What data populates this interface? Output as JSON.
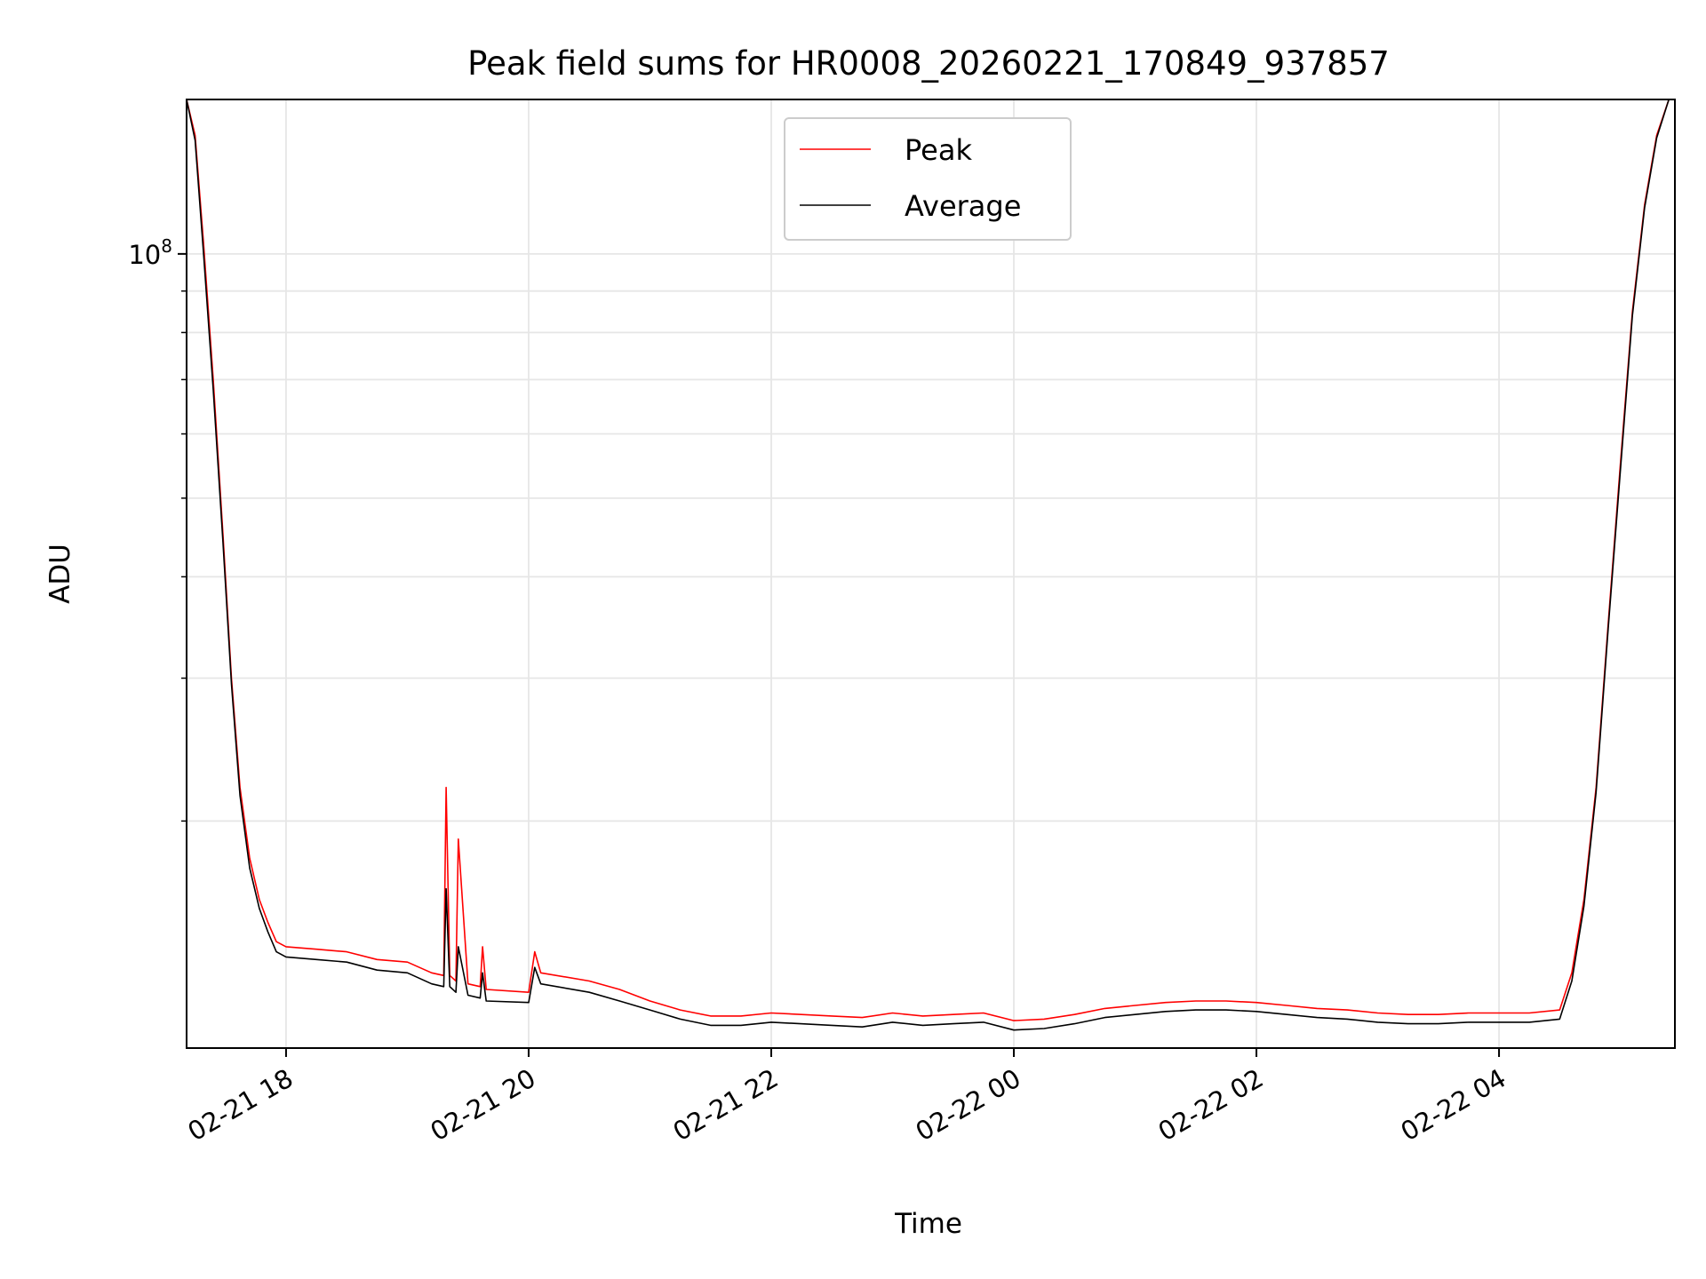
{
  "chart_data": {
    "type": "line",
    "title": "Peak field sums for HR0008_20260221_170849_937857",
    "xlabel": "Time",
    "ylabel": "ADU",
    "yscale": "log",
    "ylim": [
      10500000,
      155000000
    ],
    "xlim_hours": [
      -0.82,
      11.45
    ],
    "grid": true,
    "legend_position": "upper-center",
    "y_major_tick": {
      "value": 100000000,
      "label_base": "10",
      "label_exp": "8"
    },
    "y_minor_ticks": [
      20000000,
      30000000,
      40000000,
      50000000,
      60000000,
      70000000,
      80000000,
      90000000,
      200000000
    ],
    "x_ticks": [
      {
        "hour": 0,
        "label": "02-21 18"
      },
      {
        "hour": 2,
        "label": "02-21 20"
      },
      {
        "hour": 4,
        "label": "02-21 22"
      },
      {
        "hour": 6,
        "label": "02-22 00"
      },
      {
        "hour": 8,
        "label": "02-22 02"
      },
      {
        "hour": 10,
        "label": "02-22 04"
      }
    ],
    "series": [
      {
        "name": "Peak",
        "color": "#ff0000",
        "hours": [
          -0.82,
          -0.75,
          -0.68,
          -0.6,
          -0.52,
          -0.45,
          -0.38,
          -0.3,
          -0.22,
          -0.15,
          -0.08,
          0.0,
          0.25,
          0.5,
          0.75,
          1.0,
          1.2,
          1.3,
          1.32,
          1.35,
          1.4,
          1.42,
          1.5,
          1.6,
          1.62,
          1.65,
          2.0,
          2.05,
          2.1,
          2.5,
          2.75,
          3.0,
          3.25,
          3.5,
          3.75,
          4.0,
          4.5,
          4.75,
          5.0,
          5.25,
          5.5,
          5.75,
          6.0,
          6.25,
          6.5,
          6.75,
          7.0,
          7.25,
          7.5,
          7.75,
          8.0,
          8.25,
          8.5,
          8.75,
          9.0,
          9.25,
          9.5,
          9.75,
          10.0,
          10.25,
          10.5,
          10.6,
          10.7,
          10.8,
          10.9,
          11.0,
          11.1,
          11.2,
          11.3,
          11.4,
          11.45
        ],
        "values": [
          155000000,
          140000000,
          103000000,
          70000000,
          45000000,
          30000000,
          22000000,
          18000000,
          16000000,
          15000000,
          14200000,
          14000000,
          13900000,
          13800000,
          13500000,
          13400000,
          13000000,
          12900000,
          22000000,
          12900000,
          12700000,
          19000000,
          12600000,
          12500000,
          14000000,
          12400000,
          12300000,
          13800000,
          13000000,
          12700000,
          12400000,
          12000000,
          11700000,
          11500000,
          11500000,
          11600000,
          11500000,
          11450000,
          11600000,
          11500000,
          11550000,
          11600000,
          11350000,
          11400000,
          11550000,
          11750000,
          11850000,
          11950000,
          12000000,
          12000000,
          11950000,
          11850000,
          11750000,
          11700000,
          11600000,
          11550000,
          11550000,
          11600000,
          11600000,
          11600000,
          11700000,
          13000000,
          16000000,
          22000000,
          35000000,
          55000000,
          85000000,
          115000000,
          140000000,
          155000000,
          155000000
        ]
      },
      {
        "name": "Average",
        "color": "#000000",
        "hours": [
          -0.82,
          -0.75,
          -0.68,
          -0.6,
          -0.52,
          -0.45,
          -0.38,
          -0.3,
          -0.22,
          -0.15,
          -0.08,
          0.0,
          0.25,
          0.5,
          0.75,
          1.0,
          1.2,
          1.3,
          1.32,
          1.35,
          1.4,
          1.42,
          1.5,
          1.6,
          1.62,
          1.65,
          2.0,
          2.05,
          2.1,
          2.5,
          2.75,
          3.0,
          3.25,
          3.5,
          3.75,
          4.0,
          4.5,
          4.75,
          5.0,
          5.25,
          5.5,
          5.75,
          6.0,
          6.25,
          6.5,
          6.75,
          7.0,
          7.25,
          7.5,
          7.75,
          8.0,
          8.25,
          8.5,
          8.75,
          9.0,
          9.25,
          9.5,
          9.75,
          10.0,
          10.25,
          10.5,
          10.6,
          10.7,
          10.8,
          10.9,
          11.0,
          11.1,
          11.2,
          11.3,
          11.4,
          11.45
        ],
        "values": [
          155000000,
          138000000,
          100000000,
          68000000,
          44000000,
          29500000,
          21500000,
          17500000,
          15600000,
          14600000,
          13800000,
          13600000,
          13500000,
          13400000,
          13100000,
          13000000,
          12600000,
          12500000,
          16500000,
          12500000,
          12300000,
          14000000,
          12200000,
          12100000,
          13000000,
          12000000,
          11950000,
          13200000,
          12600000,
          12300000,
          12000000,
          11700000,
          11400000,
          11200000,
          11200000,
          11300000,
          11200000,
          11150000,
          11300000,
          11200000,
          11250000,
          11300000,
          11050000,
          11100000,
          11250000,
          11450000,
          11550000,
          11650000,
          11700000,
          11700000,
          11650000,
          11550000,
          11450000,
          11400000,
          11300000,
          11250000,
          11250000,
          11300000,
          11300000,
          11300000,
          11400000,
          12700000,
          15700000,
          21700000,
          34500000,
          54000000,
          84000000,
          114000000,
          139000000,
          155000000,
          155000000
        ]
      }
    ],
    "legend": [
      {
        "label": "Peak",
        "color": "#ff0000"
      },
      {
        "label": "Average",
        "color": "#000000"
      }
    ]
  }
}
